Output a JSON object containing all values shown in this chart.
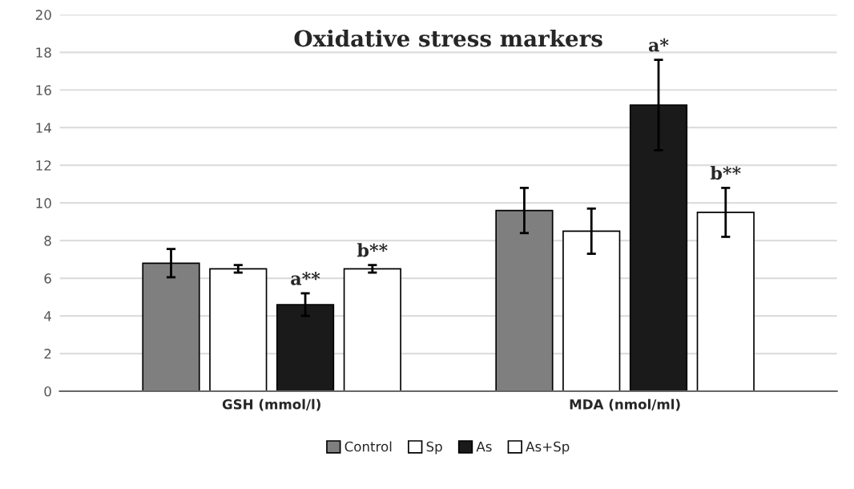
{
  "chart_data": {
    "type": "bar",
    "title": "Oxidative stress markers",
    "categories": [
      "GSH (mmol/l)",
      "MDA (nmol/ml)"
    ],
    "series": [
      {
        "name": "Control",
        "color": "#7f7f7f",
        "values": [
          6.8,
          9.6
        ],
        "errors": [
          0.75,
          1.2
        ]
      },
      {
        "name": "Sp",
        "color": "#ffffff",
        "values": [
          6.5,
          8.5
        ],
        "errors": [
          0.2,
          1.2
        ]
      },
      {
        "name": "As",
        "color": "#1a1a1a",
        "values": [
          4.6,
          15.2
        ],
        "errors": [
          0.6,
          2.4
        ]
      },
      {
        "name": "As+Sp",
        "color": "#ffffff",
        "values": [
          6.5,
          9.5
        ],
        "errors": [
          0.2,
          1.3
        ]
      }
    ],
    "annotations": [
      "a**",
      "b**",
      "a*",
      "b**"
    ],
    "ylim": [
      0,
      20
    ],
    "yticks": [
      0,
      2,
      4,
      6,
      8,
      10,
      12,
      14,
      16,
      18,
      20
    ],
    "grid": "y",
    "legend": "bottom"
  }
}
